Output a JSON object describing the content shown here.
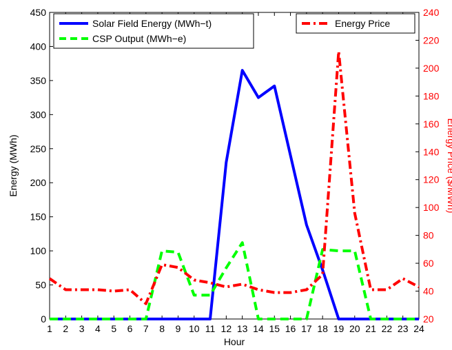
{
  "chart_data": {
    "type": "line",
    "title": "",
    "xlabel": "Hour",
    "ylabel": "Energy (MWh)",
    "y2label": "Energy Price ($/MWh)",
    "x": [
      1,
      2,
      3,
      4,
      5,
      6,
      7,
      8,
      9,
      10,
      11,
      12,
      13,
      14,
      15,
      16,
      17,
      18,
      19,
      20,
      21,
      22,
      23,
      24
    ],
    "xlim": [
      1,
      24
    ],
    "ylim": [
      0,
      450
    ],
    "y2lim": [
      20,
      240
    ],
    "xticks": [
      "1",
      "2",
      "3",
      "4",
      "5",
      "6",
      "7",
      "8",
      "9",
      "10",
      "11",
      "12",
      "13",
      "14",
      "15",
      "16",
      "17",
      "18",
      "19",
      "20",
      "21",
      "22",
      "23",
      "24"
    ],
    "yticks": [
      "0",
      "50",
      "100",
      "150",
      "200",
      "250",
      "300",
      "350",
      "400",
      "450"
    ],
    "y2ticks": [
      "20",
      "40",
      "60",
      "80",
      "100",
      "120",
      "140",
      "160",
      "180",
      "200",
      "220",
      "240"
    ],
    "grid": false,
    "series": [
      {
        "name": "Solar Field Energy (MWh−t)",
        "axis": "left",
        "color": "#0000ff",
        "style": "solid",
        "values": [
          0,
          0,
          0,
          0,
          0,
          0,
          0,
          0,
          0,
          0,
          0,
          230,
          365,
          325,
          342,
          240,
          138,
          72,
          0,
          0,
          0,
          0,
          0,
          0
        ]
      },
      {
        "name": "CSP Output (MWh−e)",
        "axis": "left",
        "color": "#00ff00",
        "style": "dashed",
        "values": [
          0,
          0,
          0,
          0,
          0,
          0,
          0,
          100,
          98,
          35,
          35,
          75,
          112,
          0,
          0,
          0,
          0,
          102,
          100,
          100,
          0,
          0,
          0,
          0
        ]
      },
      {
        "name": "Energy Price",
        "axis": "right",
        "color": "#ff0000",
        "style": "dashdot",
        "values": [
          49,
          41,
          41,
          41,
          40,
          41,
          31,
          59,
          57,
          48,
          46,
          43,
          45,
          41,
          39,
          39,
          41,
          52,
          212,
          96,
          41,
          41,
          49,
          43
        ]
      }
    ],
    "legends": [
      {
        "placement": "top-left",
        "items": [
          0,
          1
        ]
      },
      {
        "placement": "top-right",
        "items": [
          2
        ]
      }
    ]
  }
}
